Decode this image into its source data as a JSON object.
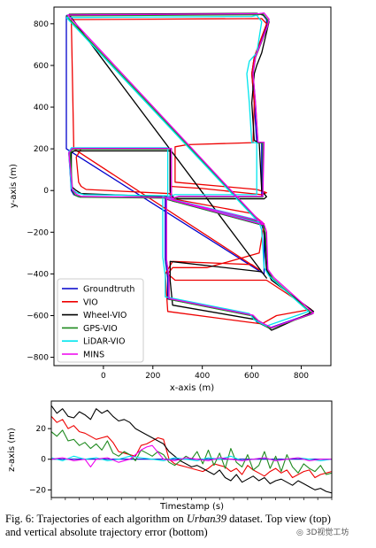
{
  "chart_data": [
    {
      "type": "line",
      "title": "",
      "xlabel": "x-axis (m)",
      "ylabel": "y-axis (m)",
      "xlim": [
        -200,
        920
      ],
      "ylim": [
        -840,
        880
      ],
      "xticks": [
        0,
        200,
        400,
        600,
        800
      ],
      "yticks": [
        -800,
        -600,
        -400,
        -200,
        0,
        200,
        400,
        600,
        800
      ],
      "xtick_labels": [
        "0",
        "200",
        "400",
        "600",
        "800"
      ],
      "ytick_labels": [
        "−800",
        "−600",
        "−400",
        "−200",
        "0",
        "200",
        "400",
        "600",
        "800"
      ],
      "legend_position": "lower-left",
      "grid": false,
      "series": [
        {
          "name": "Groundtruth",
          "color": "#0000cc",
          "x": [
            -150,
            620,
            640,
            660,
            660,
            610,
            600,
            610,
            620,
            640,
            640,
            300,
            270,
            270,
            -130,
            -140,
            -130,
            -120,
            -100,
            270,
            280,
            630,
            640,
            650,
            660,
            680,
            840,
            670,
            620,
            600,
            260,
            260,
            250,
            250,
            640,
            650,
            650,
            -150,
            -150
          ],
          "y": [
            840,
            845,
            850,
            820,
            790,
            640,
            560,
            420,
            230,
            230,
            -30,
            -30,
            -40,
            200,
            200,
            180,
            0,
            -20,
            -30,
            -35,
            -50,
            -150,
            -165,
            -200,
            -380,
            -420,
            -590,
            -660,
            -630,
            -600,
            -520,
            -420,
            -330,
            -40,
            -165,
            -200,
            -400,
            200,
            840
          ]
        },
        {
          "name": "VIO",
          "color": "#ee0000",
          "x": [
            -130,
            640,
            660,
            610,
            600,
            610,
            605,
            340,
            290,
            290,
            290,
            620,
            660,
            640,
            400,
            270,
            270,
            -90,
            -110,
            -100,
            -90,
            -70,
            270,
            280,
            600,
            650,
            630,
            420,
            280,
            260,
            290,
            660,
            840,
            700,
            640,
            260,
            250,
            280,
            600,
            630,
            -120,
            -130
          ],
          "y": [
            820,
            825,
            800,
            640,
            560,
            420,
            230,
            220,
            210,
            190,
            40,
            5,
            -10,
            -20,
            10,
            20,
            200,
            200,
            160,
            40,
            20,
            5,
            -15,
            -40,
            -110,
            -160,
            -300,
            -370,
            -370,
            -400,
            -430,
            -430,
            -570,
            -600,
            -640,
            -580,
            -400,
            -340,
            -355,
            -380,
            200,
            820
          ]
        },
        {
          "name": "Wheel-VIO",
          "color": "#000000",
          "x": [
            -140,
            620,
            650,
            670,
            640,
            620,
            610,
            600,
            610,
            630,
            640,
            660,
            650,
            300,
            280,
            270,
            270,
            -120,
            -130,
            -130,
            -110,
            -90,
            270,
            280,
            640,
            650,
            660,
            680,
            850,
            700,
            680,
            650,
            620,
            280,
            270,
            270,
            640,
            660,
            -140
          ],
          "y": [
            845,
            850,
            840,
            810,
            660,
            600,
            560,
            420,
            240,
            230,
            0,
            -30,
            -40,
            -40,
            -30,
            0,
            190,
            190,
            180,
            20,
            0,
            -15,
            -30,
            -50,
            -150,
            -170,
            -380,
            -430,
            -580,
            -660,
            -670,
            -640,
            -620,
            -550,
            -430,
            -340,
            -390,
            -420,
            845
          ]
        },
        {
          "name": "GPS-VIO",
          "color": "#1f8a1f",
          "x": [
            -150,
            625,
            645,
            665,
            665,
            615,
            605,
            615,
            625,
            645,
            645,
            305,
            275,
            275,
            -125,
            -135,
            -125,
            -115,
            -95,
            275,
            285,
            635,
            645,
            655,
            665,
            685,
            845,
            675,
            625,
            605,
            265,
            265,
            255,
            255,
            645,
            -150
          ],
          "y": [
            838,
            843,
            848,
            818,
            788,
            638,
            558,
            418,
            228,
            228,
            -32,
            -32,
            -42,
            198,
            198,
            178,
            -2,
            -22,
            -32,
            -37,
            -52,
            -152,
            -167,
            -202,
            -382,
            -422,
            -592,
            -662,
            -632,
            -602,
            -522,
            -422,
            -332,
            -42,
            -167,
            838
          ]
        },
        {
          "name": "LiDAR-VIO",
          "color": "#00e5ee",
          "x": [
            -150,
            600,
            620,
            640,
            620,
            590,
            580,
            590,
            600,
            620,
            620,
            290,
            260,
            260,
            -130,
            -140,
            -130,
            -110,
            -80,
            260,
            270,
            620,
            630,
            640,
            650,
            670,
            830,
            660,
            610,
            590,
            250,
            250,
            240,
            240,
            630,
            -150
          ],
          "y": [
            830,
            835,
            840,
            810,
            660,
            620,
            560,
            420,
            230,
            230,
            -20,
            -20,
            -30,
            205,
            205,
            185,
            10,
            -10,
            -20,
            -25,
            -40,
            -140,
            -155,
            -190,
            -370,
            -410,
            -580,
            -650,
            -620,
            -590,
            -510,
            -410,
            -320,
            -30,
            -155,
            830
          ]
        },
        {
          "name": "MINS",
          "color": "#ee00ee",
          "x": [
            -145,
            630,
            650,
            670,
            665,
            615,
            605,
            615,
            625,
            650,
            645,
            305,
            275,
            275,
            -125,
            -140,
            -125,
            -110,
            -90,
            275,
            290,
            640,
            650,
            660,
            665,
            690,
            850,
            680,
            630,
            605,
            265,
            265,
            255,
            255,
            645,
            -145
          ],
          "y": [
            842,
            848,
            852,
            822,
            792,
            642,
            562,
            422,
            232,
            232,
            -28,
            -28,
            -38,
            202,
            202,
            182,
            2,
            -18,
            -28,
            -33,
            -48,
            -148,
            -163,
            -198,
            -378,
            -418,
            -588,
            -658,
            -628,
            -598,
            -518,
            -418,
            -328,
            -38,
            -163,
            842
          ]
        }
      ]
    },
    {
      "type": "line",
      "title": "",
      "xlabel": "Timestamp (s)",
      "ylabel": "z-axis (m)",
      "xlim": [
        0,
        100
      ],
      "ylim": [
        -25,
        38
      ],
      "yticks": [
        -20,
        0,
        20
      ],
      "ytick_labels": [
        "−20",
        "0",
        "20"
      ],
      "grid": false,
      "series": [
        {
          "name": "Groundtruth",
          "color": "#0000cc",
          "x": [
            0,
            10,
            20,
            30,
            40,
            50,
            60,
            70,
            80,
            90,
            100
          ],
          "y": [
            0,
            0,
            0,
            0,
            0,
            0,
            0,
            0,
            0,
            0,
            0
          ]
        },
        {
          "name": "VIO",
          "color": "#ee0000",
          "x": [
            0,
            2,
            4,
            6,
            8,
            10,
            12,
            14,
            16,
            18,
            20,
            22,
            24,
            26,
            28,
            30,
            32,
            34,
            36,
            38,
            40,
            42,
            44,
            46,
            48,
            50,
            52,
            54,
            56,
            58,
            60,
            62,
            64,
            66,
            68,
            70,
            72,
            74,
            76,
            78,
            80,
            82,
            84,
            86,
            88,
            90,
            92,
            94,
            96,
            98,
            100
          ],
          "y": [
            28,
            24,
            26,
            20,
            22,
            18,
            17,
            15,
            13,
            14,
            15,
            11,
            5,
            4,
            3,
            2,
            9,
            10,
            12,
            14,
            13,
            0,
            -3,
            -4,
            -5,
            -6,
            -7,
            -8,
            -6,
            -3,
            -4,
            -5,
            -8,
            -6,
            -10,
            -4,
            -7,
            -9,
            -11,
            -8,
            -6,
            -9,
            -7,
            -12,
            -10,
            -8,
            -7,
            -12,
            -10,
            -9,
            -8
          ]
        },
        {
          "name": "Wheel-VIO",
          "color": "#000000",
          "x": [
            0,
            2,
            4,
            6,
            8,
            10,
            12,
            14,
            16,
            18,
            20,
            22,
            24,
            26,
            28,
            30,
            32,
            34,
            36,
            38,
            40,
            42,
            44,
            46,
            48,
            50,
            52,
            54,
            56,
            58,
            60,
            62,
            64,
            66,
            68,
            70,
            72,
            74,
            76,
            78,
            80,
            82,
            84,
            86,
            88,
            90,
            92,
            94,
            96,
            98,
            100
          ],
          "y": [
            35,
            30,
            33,
            28,
            27,
            31,
            29,
            26,
            33,
            30,
            32,
            28,
            25,
            26,
            24,
            20,
            18,
            16,
            14,
            12,
            10,
            5,
            2,
            -1,
            -3,
            -5,
            -4,
            -6,
            -8,
            -10,
            -7,
            -12,
            -14,
            -10,
            -15,
            -13,
            -11,
            -14,
            -12,
            -16,
            -14,
            -13,
            -15,
            -17,
            -14,
            -16,
            -18,
            -20,
            -19,
            -21,
            -22
          ]
        },
        {
          "name": "GPS-VIO",
          "color": "#1f8a1f",
          "x": [
            0,
            2,
            4,
            6,
            8,
            10,
            12,
            14,
            16,
            18,
            20,
            22,
            24,
            26,
            28,
            30,
            32,
            34,
            36,
            38,
            40,
            42,
            44,
            46,
            48,
            50,
            52,
            54,
            56,
            58,
            60,
            62,
            64,
            66,
            68,
            70,
            72,
            74,
            76,
            78,
            80,
            82,
            84,
            86,
            88,
            90,
            92,
            94,
            96,
            98,
            100
          ],
          "y": [
            18,
            15,
            19,
            12,
            13,
            9,
            11,
            7,
            10,
            6,
            12,
            4,
            2,
            5,
            3,
            -1,
            6,
            4,
            2,
            5,
            3,
            -2,
            -4,
            -1,
            2,
            0,
            5,
            -3,
            6,
            -4,
            4,
            -6,
            7,
            -2,
            -5,
            3,
            -7,
            -4,
            5,
            -6,
            2,
            -8,
            3,
            -5,
            -9,
            -3,
            -6,
            -8,
            -4,
            -10,
            -9
          ]
        },
        {
          "name": "LiDAR-VIO",
          "color": "#00e5ee",
          "x": [
            0,
            4,
            8,
            12,
            16,
            20,
            24,
            28,
            32,
            36,
            40,
            44,
            48,
            52,
            56,
            60,
            64,
            68,
            72,
            76,
            80,
            84,
            88,
            92,
            96,
            100
          ],
          "y": [
            1,
            -1,
            2,
            0,
            1,
            -1,
            0,
            2,
            1,
            0,
            -1,
            1,
            0,
            -1,
            1,
            0,
            2,
            -1,
            0,
            1,
            -1,
            0,
            1,
            0,
            -1,
            0
          ]
        },
        {
          "name": "MINS",
          "color": "#ee00ee",
          "x": [
            0,
            4,
            8,
            12,
            14,
            16,
            20,
            24,
            28,
            32,
            34,
            36,
            40,
            44,
            48,
            52,
            56,
            60,
            64,
            68,
            72,
            76,
            80,
            84,
            88,
            92,
            96,
            100
          ],
          "y": [
            0,
            1,
            -1,
            0,
            -5,
            0,
            1,
            -2,
            0,
            6,
            8,
            9,
            0,
            -1,
            1,
            0,
            -1,
            1,
            0,
            -1,
            0,
            1,
            -1,
            0,
            1,
            -1,
            0,
            0
          ]
        }
      ]
    }
  ],
  "caption": {
    "prefix": "Fig. 6: Trajectories of each algorithm on ",
    "dataset": "Urban39",
    "line1_suffix": " dataset. Top view (top)",
    "line2": "and vertical absolute trajectory error (bottom)"
  },
  "watermark": "3D视觉工坊"
}
